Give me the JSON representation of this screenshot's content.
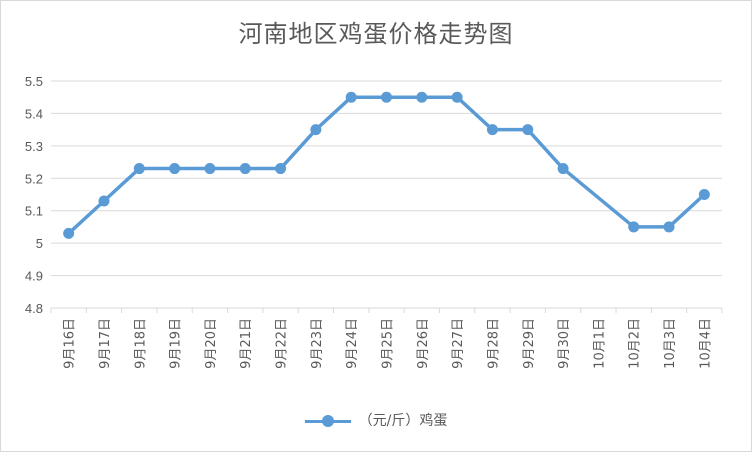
{
  "chart_data": {
    "type": "line",
    "title": "河南地区鸡蛋价格走势图",
    "xlabel": "",
    "ylabel": "",
    "categories": [
      "9月16日",
      "9月17日",
      "9月18日",
      "9月19日",
      "9月20日",
      "9月21日",
      "9月22日",
      "9月23日",
      "9月24日",
      "9月25日",
      "9月26日",
      "9月27日",
      "9月28日",
      "9月29日",
      "9月30日",
      "10月1日",
      "10月2日",
      "10月3日",
      "10月4日"
    ],
    "series": [
      {
        "name": "（元/斤）鸡蛋",
        "values": [
          5.03,
          5.13,
          5.23,
          5.23,
          5.23,
          5.23,
          5.23,
          5.35,
          5.45,
          5.45,
          5.45,
          5.45,
          5.35,
          5.35,
          5.23,
          null,
          5.05,
          5.05,
          5.15
        ],
        "color": "#5b9bd5"
      }
    ],
    "ylim": [
      4.8,
      5.5
    ],
    "yticks": [
      "5.5",
      "5.4",
      "5.3",
      "5.2",
      "5.1",
      "5",
      "4.9",
      "4.8"
    ],
    "grid": true,
    "legend": "bottom",
    "gridcolor": "#d9d9d9",
    "textcolor": "#595959"
  }
}
